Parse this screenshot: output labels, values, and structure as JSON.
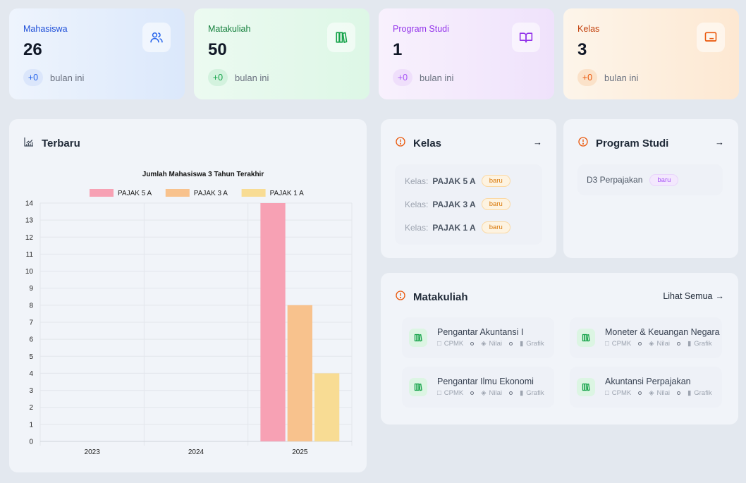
{
  "stats": [
    {
      "label": "Mahasiswa",
      "value": "26",
      "delta": "+0",
      "period": "bulan ini",
      "icon": "users-icon"
    },
    {
      "label": "Matakuliah",
      "value": "50",
      "delta": "+0",
      "period": "bulan ini",
      "icon": "books-icon"
    },
    {
      "label": "Program Studi",
      "value": "1",
      "delta": "+0",
      "period": "bulan ini",
      "icon": "open-book-icon"
    },
    {
      "label": "Kelas",
      "value": "3",
      "delta": "+0",
      "period": "bulan ini",
      "icon": "presentation-icon"
    }
  ],
  "chart_panel": {
    "title": "Terbaru"
  },
  "chart_data": {
    "type": "bar",
    "title": "Jumlah Mahasiswa 3 Tahun Terakhir",
    "categories": [
      "2023",
      "2024",
      "2025"
    ],
    "series": [
      {
        "name": "PAJAK 5 A",
        "values": [
          0,
          0,
          14
        ],
        "color": "#f7a1b4"
      },
      {
        "name": "PAJAK 3 A",
        "values": [
          0,
          0,
          8
        ],
        "color": "#f8c28d"
      },
      {
        "name": "PAJAK 1 A",
        "values": [
          0,
          0,
          4
        ],
        "color": "#f8dc94"
      }
    ],
    "ylim": [
      0,
      14
    ],
    "yticks": [
      0,
      1,
      2,
      3,
      4,
      5,
      6,
      7,
      8,
      9,
      10,
      11,
      12,
      13,
      14
    ],
    "legend": "top",
    "grid": true
  },
  "kelas": {
    "title": "Kelas",
    "items": [
      {
        "label": "Kelas:",
        "value": "PAJAK 5 A",
        "badge": "baru"
      },
      {
        "label": "Kelas:",
        "value": "PAJAK 3 A",
        "badge": "baru"
      },
      {
        "label": "Kelas:",
        "value": "PAJAK 1 A",
        "badge": "baru"
      }
    ]
  },
  "prodi": {
    "title": "Program Studi",
    "items": [
      {
        "name": "D3 Perpajakan",
        "badge": "baru"
      }
    ]
  },
  "matakuliah": {
    "title": "Matakuliah",
    "see_all": "Lihat Semua",
    "items": [
      {
        "name": "Pengantar Akuntansi I",
        "cpmk": "CPMK",
        "nilai": "Nilai",
        "grafik": "Grafik"
      },
      {
        "name": "Moneter & Keuangan Negara",
        "cpmk": "CPMK",
        "nilai": "Nilai",
        "grafik": "Grafik"
      },
      {
        "name": "Pengantar Ilmu Ekonomi",
        "cpmk": "CPMK",
        "nilai": "Nilai",
        "grafik": "Grafik"
      },
      {
        "name": "Akuntansi Perpajakan",
        "cpmk": "CPMK",
        "nilai": "Nilai",
        "grafik": "Grafik"
      }
    ]
  }
}
